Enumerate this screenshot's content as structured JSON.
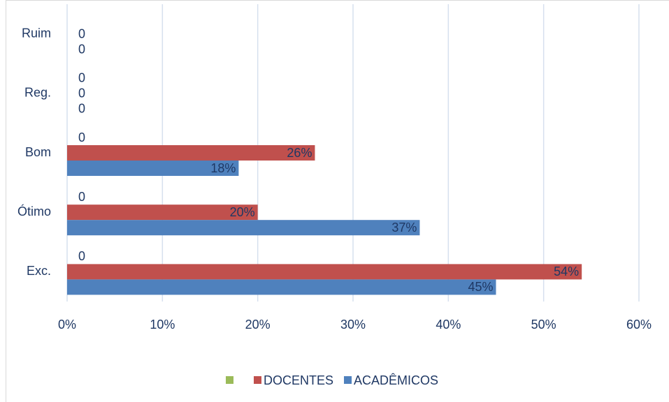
{
  "chart_data": {
    "type": "barh",
    "categories": [
      "Exc.",
      "Ótimo",
      "Bom",
      "Reg.",
      "Ruim"
    ],
    "series": [
      {
        "color": "#9bbb59",
        "values": [
          0,
          0,
          0,
          0,
          null
        ]
      },
      {
        "name": "DOCENTES",
        "color": "#c0504d",
        "values": [
          54,
          20,
          26,
          0,
          0
        ],
        "value_labels": [
          "54%",
          "20%",
          "26%",
          "0",
          "0"
        ]
      },
      {
        "name": "ACADÊMICOS",
        "color": "#4f81bd",
        "values": [
          45,
          37,
          18,
          0,
          0
        ],
        "value_labels": [
          "45%",
          "37%",
          "18%",
          "0",
          "0"
        ]
      }
    ],
    "xlim": [
      0,
      60
    ],
    "xticks": [
      {
        "value": 0,
        "label": "0%"
      },
      {
        "value": 10,
        "label": "10%"
      },
      {
        "value": 20,
        "label": "20%"
      },
      {
        "value": 30,
        "label": "30%"
      },
      {
        "value": 40,
        "label": "40%"
      },
      {
        "value": 50,
        "label": "50%"
      },
      {
        "value": 60,
        "label": "60%"
      }
    ],
    "grid": true,
    "legend": "bottom"
  }
}
